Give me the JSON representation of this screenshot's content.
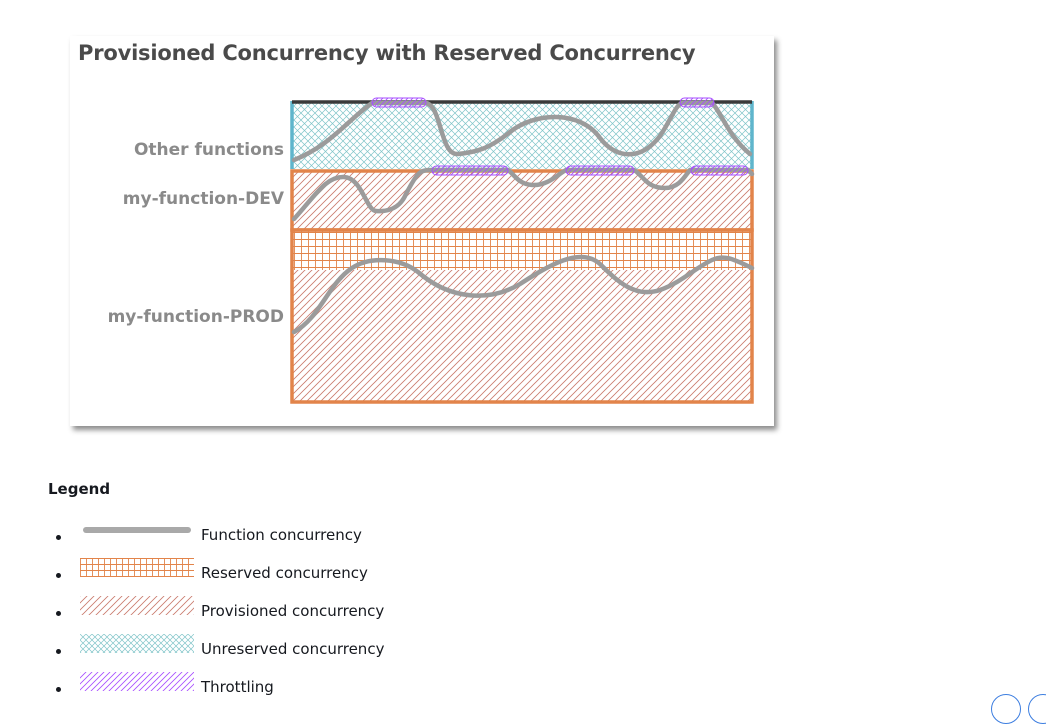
{
  "diagram": {
    "title": "Provisioned Concurrency with Reserved Concurrency",
    "rows": [
      {
        "id": "other",
        "label": "Other functions"
      },
      {
        "id": "dev",
        "label": "my-function-DEV"
      },
      {
        "id": "prod",
        "label": "my-function-PROD"
      }
    ]
  },
  "legend": {
    "title": "Legend",
    "items": [
      {
        "label": "Function concurrency",
        "swatch": "line"
      },
      {
        "label": "Reserved concurrency",
        "swatch": "grid"
      },
      {
        "label": "Provisioned concurrency",
        "swatch": "diagonal"
      },
      {
        "label": "Unreserved concurrency",
        "swatch": "crosshatch"
      },
      {
        "label": "Throttling",
        "swatch": "throttle"
      }
    ]
  },
  "colors": {
    "reserved_border": "#e2844a",
    "provisioned_hatch": "#c97a6c",
    "unreserved_hatch": "#7fc4c8",
    "unreserved_border": "#5fb5cc",
    "throttling": "#a64dff",
    "concurrency_line": "#9b9b9b",
    "top_limit": "#3a3a3a"
  }
}
